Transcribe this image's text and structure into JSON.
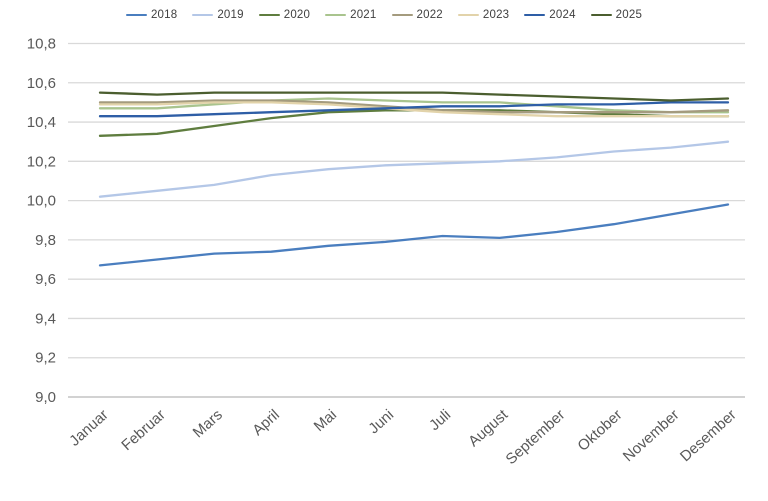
{
  "chart_data": {
    "type": "line",
    "title": "",
    "xlabel": "",
    "ylabel": "",
    "categories": [
      "Januar",
      "Februar",
      "Mars",
      "April",
      "Mai",
      "Juni",
      "Juli",
      "August",
      "September",
      "Oktober",
      "November",
      "Desember"
    ],
    "series": [
      {
        "name": "2018",
        "color": "#4a7ebf",
        "values": [
          9.67,
          9.7,
          9.73,
          9.74,
          9.77,
          9.79,
          9.82,
          9.81,
          9.84,
          9.88,
          9.93,
          9.98
        ]
      },
      {
        "name": "2019",
        "color": "#b4c7e7",
        "values": [
          10.02,
          10.05,
          10.08,
          10.13,
          10.16,
          10.18,
          10.19,
          10.2,
          10.22,
          10.25,
          10.27,
          10.3
        ]
      },
      {
        "name": "2020",
        "color": "#5f7d3f",
        "values": [
          10.33,
          10.34,
          10.38,
          10.42,
          10.45,
          10.46,
          10.46,
          10.46,
          10.45,
          10.44,
          10.43,
          10.43
        ]
      },
      {
        "name": "2021",
        "color": "#a9c48e",
        "values": [
          10.47,
          10.47,
          10.49,
          10.51,
          10.52,
          10.51,
          10.5,
          10.5,
          10.48,
          10.46,
          10.45,
          10.45
        ]
      },
      {
        "name": "2022",
        "color": "#a49b7e",
        "values": [
          10.5,
          10.5,
          10.51,
          10.51,
          10.5,
          10.48,
          10.46,
          10.45,
          10.45,
          10.45,
          10.45,
          10.46
        ]
      },
      {
        "name": "2023",
        "color": "#e2d3aa",
        "values": [
          10.49,
          10.49,
          10.5,
          10.5,
          10.49,
          10.47,
          10.45,
          10.44,
          10.43,
          10.43,
          10.43,
          10.43
        ]
      },
      {
        "name": "2024",
        "color": "#2e5ea6",
        "values": [
          10.43,
          10.43,
          10.44,
          10.45,
          10.46,
          10.47,
          10.48,
          10.48,
          10.49,
          10.49,
          10.5,
          10.5
        ]
      },
      {
        "name": "2025",
        "color": "#4b5e2f",
        "values": [
          10.55,
          10.54,
          10.55,
          10.55,
          10.55,
          10.55,
          10.55,
          10.54,
          10.53,
          10.52,
          10.51,
          10.52
        ]
      }
    ],
    "ylim": [
      9.0,
      10.8
    ],
    "ytick_step": 0.2,
    "ytick_labels": [
      "9,0",
      "9,2",
      "9,4",
      "9,6",
      "9,8",
      "10,0",
      "10,2",
      "10,4",
      "10,6",
      "10,8"
    ],
    "decimal_separator": ",",
    "grid": "horizontal",
    "legend_position": "top"
  },
  "styles": {
    "background": "#ffffff",
    "gridline_color": "#d9d9d9",
    "baseline_color": "#d2d2d2",
    "axis_text_color": "#595959",
    "legend_text_color": "#404040"
  }
}
